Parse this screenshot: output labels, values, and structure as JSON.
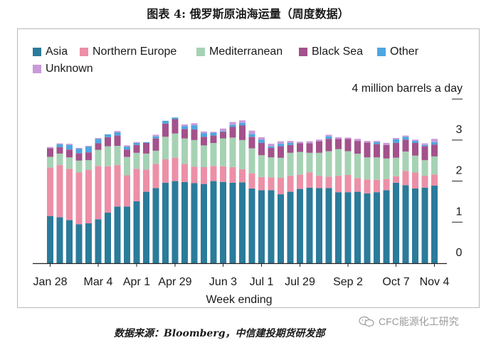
{
  "figure_title": "图表 4: 俄罗斯原油海运量（周度数据）",
  "source_text": "数据来源：Bloomberg，中信建投期货研发部",
  "watermark_text": "CFC能源化工研究",
  "colors": {
    "Asia": "#2b7b9b",
    "Northern Europe": "#ec8fa7",
    "Mediterranean": "#a6d2b4",
    "Black Sea": "#a3528b",
    "Other": "#4ea6e0",
    "Unknown": "#c89ad9",
    "axis": "#222222"
  },
  "chart_data": {
    "type": "bar",
    "stacked": true,
    "title": "",
    "unit_label": "4 million barrels a day",
    "xlabel": "Week ending",
    "ylabel": "",
    "ylim": [
      0,
      4
    ],
    "yticks": [
      0,
      1,
      2,
      3
    ],
    "grid": false,
    "legend_position": "top-left",
    "x_tick_labels": [
      {
        "index": 0,
        "label": "Jan 28"
      },
      {
        "index": 5,
        "label": "Mar 4"
      },
      {
        "index": 9,
        "label": "Apr 1"
      },
      {
        "index": 13,
        "label": "Apr 29"
      },
      {
        "index": 18,
        "label": "Jun 3"
      },
      {
        "index": 22,
        "label": "Jul 1"
      },
      {
        "index": 26,
        "label": "Jul 29"
      },
      {
        "index": 31,
        "label": "Sep 2"
      },
      {
        "index": 36,
        "label": "Oct 7"
      },
      {
        "index": 40,
        "label": "Nov 4"
      }
    ],
    "categories": [
      "Jan 28",
      "Feb 4",
      "Feb 11",
      "Feb 18",
      "Feb 25",
      "Mar 4",
      "Mar 11",
      "Mar 18",
      "Mar 25",
      "Apr 1",
      "Apr 8",
      "Apr 15",
      "Apr 22",
      "Apr 29",
      "May 6",
      "May 13",
      "May 20",
      "May 27",
      "Jun 3",
      "Jun 10",
      "Jun 17",
      "Jun 24",
      "Jul 1",
      "Jul 8",
      "Jul 15",
      "Jul 22",
      "Jul 29",
      "Aug 5",
      "Aug 12",
      "Aug 19",
      "Aug 26",
      "Sep 2",
      "Sep 9",
      "Sep 16",
      "Sep 23",
      "Sep 30",
      "Oct 7",
      "Oct 14",
      "Oct 21",
      "Oct 28",
      "Nov 4"
    ],
    "series": [
      {
        "name": "Asia",
        "values": [
          1.15,
          1.12,
          1.05,
          0.95,
          0.97,
          1.07,
          1.23,
          1.38,
          1.38,
          1.51,
          1.74,
          1.83,
          1.96,
          2.0,
          1.98,
          1.95,
          1.93,
          2.0,
          1.98,
          1.96,
          1.97,
          1.82,
          1.78,
          1.78,
          1.68,
          1.74,
          1.81,
          1.84,
          1.83,
          1.83,
          1.73,
          1.73,
          1.74,
          1.7,
          1.73,
          1.78,
          1.96,
          1.9,
          1.82,
          1.84,
          1.89
        ]
      },
      {
        "name": "Northern Europe",
        "values": [
          1.18,
          1.27,
          1.25,
          1.26,
          1.3,
          1.3,
          1.13,
          1.01,
          0.76,
          0.79,
          0.54,
          0.59,
          0.57,
          0.57,
          0.44,
          0.4,
          0.41,
          0.37,
          0.38,
          0.38,
          0.32,
          0.37,
          0.32,
          0.31,
          0.4,
          0.39,
          0.35,
          0.37,
          0.3,
          0.28,
          0.4,
          0.42,
          0.33,
          0.34,
          0.3,
          0.27,
          0.16,
          0.35,
          0.39,
          0.29,
          0.27
        ]
      },
      {
        "name": "Mediterranean",
        "values": [
          0.26,
          0.28,
          0.28,
          0.29,
          0.24,
          0.39,
          0.49,
          0.47,
          0.45,
          0.39,
          0.39,
          0.32,
          0.55,
          0.59,
          0.62,
          0.65,
          0.53,
          0.56,
          0.68,
          0.72,
          0.71,
          0.61,
          0.53,
          0.49,
          0.49,
          0.56,
          0.55,
          0.48,
          0.56,
          0.62,
          0.65,
          0.58,
          0.6,
          0.54,
          0.55,
          0.5,
          0.45,
          0.47,
          0.41,
          0.38,
          0.44
        ]
      },
      {
        "name": "Black Sea",
        "values": [
          0.21,
          0.16,
          0.19,
          0.18,
          0.19,
          0.16,
          0.22,
          0.25,
          0.18,
          0.19,
          0.26,
          0.3,
          0.32,
          0.35,
          0.23,
          0.26,
          0.21,
          0.18,
          0.16,
          0.26,
          0.36,
          0.28,
          0.3,
          0.23,
          0.28,
          0.19,
          0.21,
          0.23,
          0.28,
          0.3,
          0.25,
          0.3,
          0.31,
          0.36,
          0.32,
          0.33,
          0.36,
          0.29,
          0.31,
          0.34,
          0.29
        ]
      },
      {
        "name": "Other",
        "values": [
          0.0,
          0.07,
          0.11,
          0.11,
          0.14,
          0.11,
          0.07,
          0.08,
          0.07,
          0.05,
          0.02,
          0.05,
          0.07,
          0.04,
          0.07,
          0.1,
          0.09,
          0.07,
          0.02,
          0.05,
          0.06,
          0.07,
          0.08,
          0.04,
          0.06,
          0.05,
          0.0,
          0.0,
          0.0,
          0.06,
          0.0,
          0.0,
          0.0,
          0.0,
          0.05,
          0.0,
          0.09,
          0.07,
          0.05,
          0.03,
          0.06
        ]
      },
      {
        "name": "Unknown",
        "values": [
          0.03,
          0.02,
          0.03,
          0.02,
          0.02,
          0.02,
          0.0,
          0.03,
          0.03,
          0.02,
          0.0,
          0.04,
          0.0,
          0.0,
          0.04,
          0.05,
          0.04,
          0.02,
          0.06,
          0.07,
          0.06,
          0.08,
          0.06,
          0.06,
          0.06,
          0.05,
          0.04,
          0.05,
          0.04,
          0.04,
          0.04,
          0.03,
          0.05,
          0.04,
          0.03,
          0.05,
          0.03,
          0.03,
          0.03,
          0.04,
          0.08
        ]
      }
    ]
  }
}
